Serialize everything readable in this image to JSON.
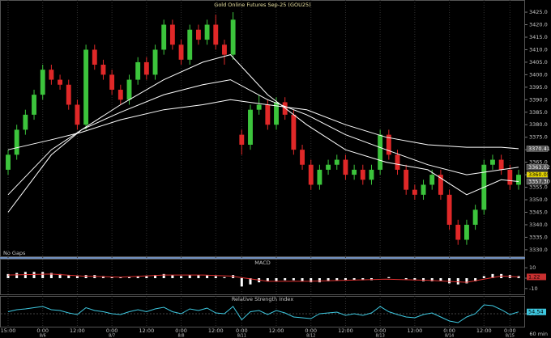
{
  "chart_data": [
    {
      "type": "candlestick",
      "title": "Gold Online Futures Sep-25 (GOU25)",
      "note": "No Gaps",
      "categories": [
        "15:00",
        null,
        null,
        null,
        "0:00",
        null,
        null,
        null,
        "12:00",
        null,
        null,
        null,
        "0:00",
        null,
        null,
        null,
        "12:00",
        null,
        null,
        null,
        "0:00",
        null,
        null,
        null,
        "12:00",
        null,
        null,
        "0:00",
        null,
        null,
        null,
        "12:00",
        null,
        null,
        null,
        "0:00",
        null,
        null,
        null,
        "12:00",
        null,
        null,
        null,
        "0:00",
        null,
        null,
        null,
        "12:00",
        null,
        null,
        null,
        "0:00",
        null,
        null,
        null,
        "12:00",
        null,
        null,
        "0:00",
        null
      ],
      "dates": [
        null,
        null,
        null,
        null,
        "8/6",
        null,
        null,
        null,
        null,
        null,
        null,
        null,
        "8/7",
        null,
        null,
        null,
        null,
        null,
        null,
        null,
        "8/8",
        null,
        null,
        null,
        null,
        null,
        null,
        "8/11",
        null,
        null,
        null,
        null,
        null,
        null,
        null,
        "8/12",
        null,
        null,
        null,
        null,
        null,
        null,
        null,
        "8/13",
        null,
        null,
        null,
        null,
        null,
        null,
        null,
        "8/14",
        null,
        null,
        null,
        null,
        null,
        null,
        "8/15",
        null
      ],
      "open": [
        3362,
        3368,
        3378,
        3384,
        3392,
        3402,
        3398,
        3396,
        3388,
        3380,
        3410,
        3404,
        3400,
        3394,
        3390,
        3398,
        3405,
        3400,
        3410,
        3420,
        3412,
        3406,
        3418,
        3414,
        3420,
        3412,
        3408,
        3376,
        3372,
        3386,
        3388,
        3380,
        3389,
        3384,
        3370,
        3364,
        3356,
        3362,
        3364,
        3366,
        3360,
        3362,
        3358,
        3362,
        3376,
        3368,
        3362,
        3354,
        3352,
        3356,
        3360,
        3352,
        3340,
        3334,
        3340,
        3346,
        3364,
        3366,
        3362,
        3356
      ],
      "high": [
        3370,
        3380,
        3386,
        3394,
        3404,
        3404,
        3400,
        3398,
        3390,
        3412,
        3412,
        3406,
        3402,
        3396,
        3400,
        3407,
        3407,
        3412,
        3422,
        3422,
        3414,
        3420,
        3420,
        3422,
        3424,
        3414,
        3425,
        3378,
        3388,
        3392,
        3390,
        3391,
        3391,
        3386,
        3372,
        3366,
        3364,
        3366,
        3368,
        3368,
        3364,
        3364,
        3364,
        3378,
        3378,
        3370,
        3364,
        3356,
        3358,
        3362,
        3362,
        3354,
        3342,
        3342,
        3348,
        3366,
        3368,
        3368,
        3364,
        3362
      ],
      "low": [
        3360,
        3366,
        3376,
        3382,
        3390,
        3396,
        3394,
        3386,
        3378,
        3378,
        3402,
        3398,
        3392,
        3388,
        3388,
        3396,
        3398,
        3398,
        3408,
        3410,
        3404,
        3404,
        3412,
        3412,
        3410,
        3404,
        3406,
        3368,
        3370,
        3384,
        3378,
        3378,
        3382,
        3368,
        3362,
        3354,
        3354,
        3360,
        3362,
        3358,
        3358,
        3356,
        3356,
        3360,
        3366,
        3360,
        3352,
        3350,
        3350,
        3354,
        3350,
        3338,
        3332,
        3332,
        3338,
        3344,
        3362,
        3360,
        3354,
        3354
      ],
      "close": [
        3368,
        3378,
        3384,
        3392,
        3402,
        3398,
        3396,
        3388,
        3380,
        3410,
        3404,
        3400,
        3394,
        3390,
        3398,
        3405,
        3400,
        3410,
        3420,
        3412,
        3406,
        3418,
        3414,
        3420,
        3412,
        3408,
        3422,
        3372,
        3386,
        3388,
        3380,
        3389,
        3384,
        3370,
        3364,
        3356,
        3362,
        3364,
        3366,
        3360,
        3362,
        3358,
        3362,
        3376,
        3368,
        3362,
        3354,
        3352,
        3356,
        3360,
        3352,
        3340,
        3334,
        3340,
        3346,
        3364,
        3366,
        3362,
        3356,
        3360
      ],
      "up_color": "#3cc43c",
      "down_color": "#e02828",
      "ylim": [
        3327.7,
        3428.9
      ],
      "yticks": [
        {
          "value": 3330,
          "label": "3330.0"
        },
        {
          "value": 3335,
          "label": "3335.0"
        },
        {
          "value": 3340,
          "label": "3340.0"
        },
        {
          "value": 3345,
          "label": "3345.0"
        },
        {
          "value": 3350,
          "label": "3350.0"
        },
        {
          "value": 3355,
          "label": "3355.0"
        },
        {
          "value": 3360,
          "label": "3360.0"
        },
        {
          "value": 3365,
          "label": "3365.0"
        },
        {
          "value": 3370,
          "label": "3370.0"
        },
        {
          "value": 3375,
          "label": "3375.0"
        },
        {
          "value": 3380,
          "label": "3380.0"
        },
        {
          "value": 3385,
          "label": "3385.0"
        },
        {
          "value": 3390,
          "label": "3390.0"
        },
        {
          "value": 3395,
          "label": "3395.0"
        },
        {
          "value": 3400,
          "label": "3400.0"
        },
        {
          "value": 3405,
          "label": "3405.0"
        },
        {
          "value": 3410,
          "label": "3410.0"
        },
        {
          "value": 3415,
          "label": "3415.0"
        },
        {
          "value": 3420,
          "label": "3420.0"
        },
        {
          "value": 3425,
          "label": "3425.0"
        }
      ],
      "series": [
        {
          "color": "#ffffff",
          "x": [
            0,
            5,
            8.5,
            13,
            18,
            22.5,
            25.7,
            30,
            34.5,
            39,
            43.7,
            48.5,
            53,
            57,
            59
          ],
          "values": [
            3345,
            3368,
            3378,
            3388,
            3398,
            3405,
            3408,
            3392,
            3380,
            3370,
            3365,
            3362,
            3352,
            3358,
            3357.3
          ]
        },
        {
          "color": "#ffffff",
          "x": [
            0,
            5,
            8.5,
            13,
            18,
            22.5,
            25.7,
            30,
            34.5,
            39,
            43.7,
            48.5,
            53,
            57,
            59
          ],
          "values": [
            3352,
            3370,
            3378,
            3385,
            3392,
            3396,
            3398,
            3390,
            3384,
            3376,
            3370,
            3364,
            3360,
            3362,
            3363.02
          ]
        },
        {
          "color": "#ffffff",
          "x": [
            0,
            5,
            8.5,
            13,
            18,
            22.5,
            25.7,
            30,
            34.5,
            39,
            43.7,
            48.5,
            53,
            57,
            59
          ],
          "values": [
            3370,
            3374,
            3377,
            3382,
            3386,
            3388,
            3390,
            3388,
            3386,
            3380,
            3375,
            3372,
            3371,
            3371,
            3370.41
          ]
        }
      ],
      "price_labels": [
        {
          "value": 3370.41,
          "color": "#505050"
        },
        {
          "value": 3363.02,
          "color": "#505050"
        },
        {
          "value": 3360.05,
          "color": "#e8d800"
        },
        {
          "value": 3357.3,
          "label": "3357.30",
          "color": "#505050"
        }
      ]
    },
    {
      "type": "macd",
      "title": "MACD",
      "values": [
        4,
        5,
        6,
        6,
        6,
        5,
        4,
        3,
        2,
        3,
        3,
        2,
        1,
        1,
        1,
        2,
        2,
        3,
        4,
        3,
        2,
        3,
        3,
        3,
        2,
        1,
        3,
        -8,
        -6,
        -4,
        -3,
        -3,
        -2,
        -2,
        -3,
        -4,
        -4,
        -3,
        -2,
        -2,
        -2,
        -2,
        -2,
        0,
        1,
        0,
        -1,
        -2,
        -3,
        -3,
        -3,
        -5,
        -6,
        -5,
        -3,
        2,
        4,
        4,
        3,
        2
      ],
      "color": "#ffffff",
      "signal": {
        "color": "#e03030",
        "x": [
          0,
          5,
          8.5,
          13,
          18,
          22.5,
          25.7,
          30,
          34.5,
          39,
          43.7,
          48.5,
          53,
          57,
          59
        ],
        "values": [
          3,
          4,
          2,
          1,
          3,
          3,
          2,
          -3,
          -3,
          -2,
          -1,
          -2,
          -4,
          2,
          1.22
        ]
      },
      "ylim": [
        -14,
        14
      ],
      "yticks": [
        10,
        0,
        -10
      ],
      "last_label": {
        "value": 1.22,
        "color": "#c83030"
      }
    },
    {
      "type": "line",
      "title": "Relative Strength Index",
      "interval": "60 min",
      "values": [
        55,
        60,
        62,
        65,
        68,
        60,
        58,
        52,
        48,
        65,
        58,
        55,
        50,
        48,
        55,
        60,
        55,
        62,
        66,
        55,
        50,
        62,
        58,
        64,
        52,
        50,
        68,
        35,
        55,
        58,
        48,
        58,
        52,
        42,
        40,
        38,
        50,
        52,
        54,
        46,
        50,
        46,
        52,
        68,
        55,
        48,
        42,
        40,
        48,
        52,
        42,
        32,
        28,
        42,
        50,
        72,
        70,
        60,
        48,
        54.54
      ],
      "color": "#3ec8e0",
      "ylim": [
        20,
        90
      ],
      "yticks": [
        50
      ],
      "last_label": {
        "value": 54.54,
        "color": "#3ec8e0"
      }
    }
  ]
}
